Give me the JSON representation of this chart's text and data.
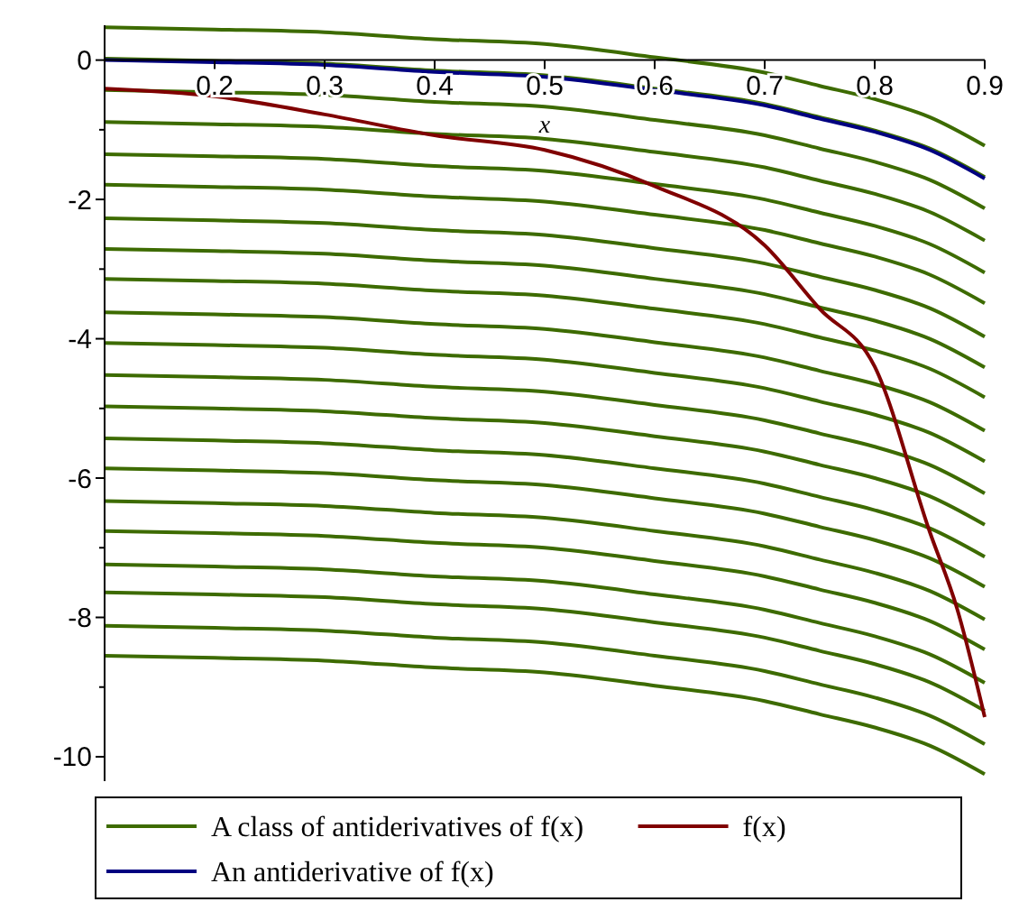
{
  "chart_data": {
    "type": "line",
    "xlabel": "x",
    "x": [
      0.1,
      0.2,
      0.3,
      0.4,
      0.5,
      0.6,
      0.7,
      0.75,
      0.8,
      0.85,
      0.9
    ],
    "xlim": [
      0.1,
      0.9
    ],
    "xticks": [
      0.2,
      0.3,
      0.4,
      0.5,
      0.6,
      0.7,
      0.8,
      0.9
    ],
    "ylim": [
      -10.35,
      0.5
    ],
    "yticks": [
      -10,
      {
        "value": -9,
        "label": null
      },
      -8,
      {
        "value": -7,
        "label": null
      },
      -6,
      {
        "value": -5,
        "label": null
      },
      -4,
      {
        "value": -3,
        "label": null
      },
      -2,
      {
        "value": -1,
        "label": null
      },
      0
    ],
    "legend": "bottom",
    "grid": false,
    "marker": "none",
    "line_style": "solid",
    "series": [
      {
        "name": "A class of antiderivatives of f(x)",
        "color": "#3d6b00",
        "values": [
          0.47,
          0.44,
          0.4,
          0.3,
          0.23,
          0.04,
          -0.18,
          -0.37,
          -0.56,
          -0.82,
          -1.23
        ]
      },
      {
        "color": "#3d6b00",
        "values": [
          0.02,
          -0.01,
          -0.05,
          -0.15,
          -0.22,
          -0.41,
          -0.63,
          -0.82,
          -1.01,
          -1.27,
          -1.68
        ]
      },
      {
        "color": "#3d6b00",
        "values": [
          -0.43,
          -0.46,
          -0.5,
          -0.6,
          -0.67,
          -0.86,
          -1.08,
          -1.27,
          -1.46,
          -1.72,
          -2.13
        ]
      },
      {
        "color": "#3d6b00",
        "values": [
          -0.89,
          -0.92,
          -0.96,
          -1.06,
          -1.13,
          -1.32,
          -1.54,
          -1.73,
          -1.92,
          -2.18,
          -2.59
        ]
      },
      {
        "color": "#3d6b00",
        "values": [
          -1.35,
          -1.38,
          -1.42,
          -1.52,
          -1.59,
          -1.78,
          -2.0,
          -2.19,
          -2.38,
          -2.64,
          -3.05
        ]
      },
      {
        "color": "#3d6b00",
        "values": [
          -1.79,
          -1.82,
          -1.86,
          -1.96,
          -2.03,
          -2.22,
          -2.44,
          -2.63,
          -2.82,
          -3.08,
          -3.49
        ]
      },
      {
        "color": "#3d6b00",
        "values": [
          -2.27,
          -2.3,
          -2.34,
          -2.44,
          -2.51,
          -2.7,
          -2.92,
          -3.11,
          -3.3,
          -3.56,
          -3.97
        ]
      },
      {
        "color": "#3d6b00",
        "values": [
          -2.71,
          -2.74,
          -2.78,
          -2.88,
          -2.95,
          -3.14,
          -3.36,
          -3.55,
          -3.74,
          -4.0,
          -4.41
        ]
      },
      {
        "color": "#3d6b00",
        "values": [
          -3.14,
          -3.17,
          -3.21,
          -3.31,
          -3.38,
          -3.57,
          -3.79,
          -3.98,
          -4.17,
          -4.43,
          -4.84
        ]
      },
      {
        "color": "#3d6b00",
        "values": [
          -3.62,
          -3.65,
          -3.69,
          -3.79,
          -3.86,
          -4.05,
          -4.27,
          -4.46,
          -4.65,
          -4.91,
          -5.32
        ]
      },
      {
        "color": "#3d6b00",
        "values": [
          -4.06,
          -4.09,
          -4.13,
          -4.23,
          -4.3,
          -4.49,
          -4.71,
          -4.9,
          -5.09,
          -5.35,
          -5.76
        ]
      },
      {
        "color": "#3d6b00",
        "values": [
          -4.52,
          -4.55,
          -4.59,
          -4.69,
          -4.76,
          -4.95,
          -5.17,
          -5.36,
          -5.55,
          -5.81,
          -6.22
        ]
      },
      {
        "color": "#3d6b00",
        "values": [
          -4.97,
          -5.0,
          -5.04,
          -5.14,
          -5.21,
          -5.4,
          -5.62,
          -5.81,
          -6.0,
          -6.26,
          -6.67
        ]
      },
      {
        "color": "#3d6b00",
        "values": [
          -5.43,
          -5.46,
          -5.5,
          -5.6,
          -5.67,
          -5.86,
          -6.08,
          -6.27,
          -6.46,
          -6.72,
          -7.13
        ]
      },
      {
        "color": "#3d6b00",
        "values": [
          -5.86,
          -5.89,
          -5.93,
          -6.03,
          -6.1,
          -6.29,
          -6.51,
          -6.7,
          -6.89,
          -7.15,
          -7.56
        ]
      },
      {
        "color": "#3d6b00",
        "values": [
          -6.33,
          -6.36,
          -6.4,
          -6.5,
          -6.57,
          -6.76,
          -6.98,
          -7.17,
          -7.36,
          -7.62,
          -8.03
        ]
      },
      {
        "color": "#3d6b00",
        "values": [
          -6.76,
          -6.79,
          -6.83,
          -6.93,
          -7.0,
          -7.19,
          -7.41,
          -7.6,
          -7.79,
          -8.05,
          -8.46
        ]
      },
      {
        "color": "#3d6b00",
        "values": [
          -7.24,
          -7.27,
          -7.31,
          -7.41,
          -7.48,
          -7.67,
          -7.89,
          -8.08,
          -8.27,
          -8.53,
          -8.94
        ]
      },
      {
        "color": "#3d6b00",
        "values": [
          -7.64,
          -7.67,
          -7.71,
          -7.81,
          -7.88,
          -8.07,
          -8.29,
          -8.48,
          -8.67,
          -8.93,
          -9.34
        ]
      },
      {
        "color": "#3d6b00",
        "values": [
          -8.12,
          -8.15,
          -8.19,
          -8.29,
          -8.36,
          -8.55,
          -8.77,
          -8.96,
          -9.15,
          -9.41,
          -9.82
        ]
      },
      {
        "color": "#3d6b00",
        "values": [
          -8.55,
          -8.58,
          -8.62,
          -8.72,
          -8.79,
          -8.98,
          -9.2,
          -9.39,
          -9.58,
          -9.84,
          -10.25
        ]
      },
      {
        "name": "f(x)",
        "color": "#800000",
        "x": [
          0.1,
          0.2,
          0.3,
          0.4,
          0.5,
          0.6,
          0.7,
          0.75,
          0.8,
          0.85,
          0.875,
          0.9
        ],
        "values": [
          -0.41,
          -0.52,
          -0.78,
          -1.08,
          -1.29,
          -1.81,
          -2.66,
          -3.57,
          -4.4,
          -6.77,
          -7.88,
          -9.43
        ]
      },
      {
        "name": "An antiderivative of f(x)",
        "color": "#000080",
        "values": [
          0,
          -0.03,
          -0.07,
          -0.17,
          -0.24,
          -0.43,
          -0.65,
          -0.84,
          -1.03,
          -1.29,
          -1.7
        ]
      }
    ]
  }
}
